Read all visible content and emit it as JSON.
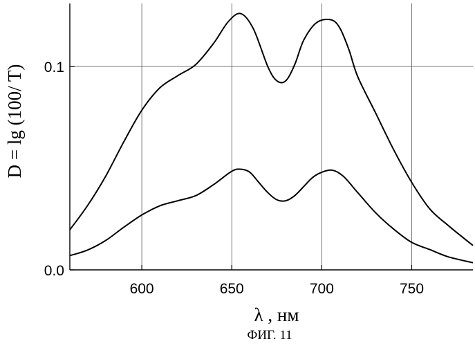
{
  "chart_data": {
    "type": "line",
    "ylabel": "D = lg (100/ T)",
    "xlabel": "λ , нм",
    "caption": "ФИГ. 11",
    "xlim": [
      560,
      784
    ],
    "ylim": [
      0.0,
      0.131
    ],
    "x_ticks": [
      600,
      650,
      700,
      750
    ],
    "x_tick_labels": [
      "600",
      "650",
      "700",
      "750"
    ],
    "y_ticks": [
      0.0,
      0.1
    ],
    "y_tick_labels": [
      "0.0",
      "0.1"
    ],
    "grid": true,
    "grid_x": [
      600,
      650,
      700,
      750
    ],
    "grid_y": [
      0.1
    ],
    "line_color": "#000000",
    "series": [
      {
        "x": [
          560,
          570,
          580,
          590,
          600,
          610,
          620,
          630,
          640,
          648,
          655,
          662,
          670,
          675,
          680,
          685,
          690,
          697,
          705,
          710,
          715,
          720,
          730,
          740,
          750,
          760,
          770,
          784
        ],
        "values": [
          0.0197,
          0.0318,
          0.0462,
          0.063,
          0.0785,
          0.0895,
          0.0955,
          0.101,
          0.1115,
          0.122,
          0.126,
          0.1185,
          0.1,
          0.093,
          0.093,
          0.101,
          0.113,
          0.1215,
          0.123,
          0.119,
          0.1085,
          0.095,
          0.077,
          0.059,
          0.043,
          0.03,
          0.022,
          0.012
        ]
      },
      {
        "x": [
          560,
          570,
          580,
          590,
          600,
          610,
          620,
          630,
          640,
          650,
          655,
          660,
          665,
          670,
          675,
          680,
          685,
          690,
          695,
          700,
          706,
          712,
          720,
          730,
          740,
          750,
          760,
          770,
          784
        ],
        "values": [
          0.007,
          0.0098,
          0.0145,
          0.021,
          0.027,
          0.0315,
          0.034,
          0.0365,
          0.042,
          0.0485,
          0.0495,
          0.048,
          0.043,
          0.038,
          0.0345,
          0.034,
          0.0365,
          0.041,
          0.0455,
          0.048,
          0.049,
          0.046,
          0.038,
          0.028,
          0.02,
          0.0135,
          0.01,
          0.0065,
          0.0035
        ]
      }
    ]
  }
}
